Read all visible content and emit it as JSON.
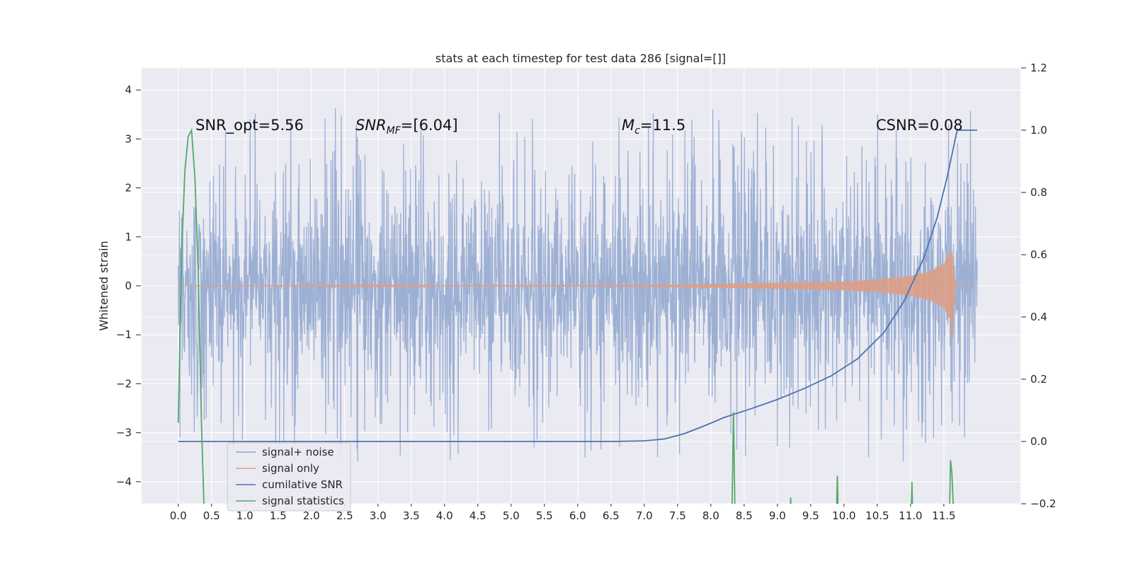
{
  "chart_data": {
    "type": "line",
    "title": "stats at each timestep for test data 286 [signal=[]]",
    "ylabel": "Whitened strain",
    "xlabel": "",
    "xlim": [
      -0.55,
      12.65
    ],
    "ylim": [
      -4.45,
      4.45
    ],
    "y2lim": [
      -0.2,
      1.2
    ],
    "x_ticks": [
      0.0,
      0.5,
      1.0,
      1.5,
      2.0,
      2.5,
      3.0,
      3.5,
      4.0,
      4.5,
      5.0,
      5.5,
      6.0,
      6.5,
      7.0,
      7.5,
      8.0,
      8.5,
      9.0,
      9.5,
      10.0,
      10.5,
      11.0,
      11.5
    ],
    "x_tick_labels": [
      "0.0",
      "0.5",
      "1.0",
      "1.5",
      "2.0",
      "2.5",
      "3.0",
      "3.5",
      "4.0",
      "4.5",
      "5.0",
      "5.5",
      "6.0",
      "6.5",
      "7.0",
      "7.5",
      "8.0",
      "8.5",
      "9.0",
      "9.5",
      "10.0",
      "10.5",
      "11.0",
      "11.5"
    ],
    "y_ticks": [
      -4,
      -3,
      -2,
      -1,
      0,
      1,
      2,
      3,
      4
    ],
    "y_tick_labels": [
      "−4",
      "−3",
      "−2",
      "−1",
      "0",
      "1",
      "2",
      "3",
      "4"
    ],
    "y2_ticks": [
      -0.2,
      0.0,
      0.2,
      0.4,
      0.6,
      0.8,
      1.0,
      1.2
    ],
    "y2_tick_labels": [
      "−0.2",
      "0.0",
      "0.2",
      "0.4",
      "0.6",
      "0.8",
      "1.0",
      "1.2"
    ],
    "grid": true,
    "legend_placement": "lower-left",
    "annotations": {
      "snr_opt": "SNR_opt=5.56",
      "snr_mf_main": "SNR",
      "snr_mf_sub": "MF",
      "snr_mf_rest": "=[6.04]",
      "mc_main": "M",
      "mc_sub": "c",
      "mc_rest": "=11.5",
      "csnr": "CSNR=0.08"
    },
    "series": [
      {
        "name": "signal+ noise",
        "color": "#8fa6cf",
        "axis": "left",
        "style": "noise",
        "x_range": [
          0.0,
          12.0
        ],
        "envelope": 1.9,
        "max": 4.1,
        "min": -4.1
      },
      {
        "name": "signal only",
        "color": "#dd9f86",
        "axis": "left",
        "style": "chirp",
        "x_range": [
          0.0,
          12.0
        ],
        "peak_x": 11.65,
        "envelope_x": [
          0.0,
          7.0,
          8.0,
          9.0,
          10.0,
          10.5,
          11.0,
          11.3,
          11.5,
          11.62,
          11.68,
          12.0
        ],
        "envelope_y": [
          0.0,
          0.02,
          0.04,
          0.06,
          0.09,
          0.13,
          0.2,
          0.3,
          0.45,
          0.75,
          0.0,
          0.0
        ]
      },
      {
        "name": "cumilative SNR",
        "color": "#4c72b0",
        "axis": "right",
        "x": [
          0.0,
          1.0,
          2.0,
          3.0,
          4.0,
          5.0,
          6.0,
          6.5,
          7.0,
          7.3,
          7.6,
          7.9,
          8.2,
          8.6,
          9.0,
          9.4,
          9.8,
          10.2,
          10.6,
          10.9,
          11.2,
          11.4,
          11.55,
          11.7,
          11.8,
          12.0
        ],
        "y": [
          0.0,
          0.0,
          0.0,
          0.0,
          0.0,
          0.0,
          0.0,
          0.0,
          0.002,
          0.008,
          0.025,
          0.05,
          0.077,
          0.105,
          0.135,
          0.17,
          0.21,
          0.265,
          0.35,
          0.45,
          0.59,
          0.72,
          0.85,
          1.0,
          1.0,
          1.0
        ]
      },
      {
        "name": "signal statistics",
        "color": "#55a868",
        "axis": "right",
        "x": [
          0.0,
          0.05,
          0.1,
          0.15,
          0.2,
          0.25,
          0.3,
          0.35,
          0.4,
          8.3,
          8.32,
          8.34,
          8.36,
          8.38,
          9.18,
          9.2,
          9.22,
          9.88,
          9.9,
          9.92,
          11.0,
          11.02,
          11.04,
          11.58,
          11.6,
          11.62,
          11.65,
          11.68
        ],
        "y": [
          0.06,
          0.6,
          0.87,
          0.98,
          1.0,
          0.85,
          0.55,
          0.05,
          -0.3,
          -0.3,
          -0.2,
          0.095,
          -0.2,
          -0.3,
          -0.3,
          -0.18,
          -0.3,
          -0.3,
          -0.11,
          -0.3,
          -0.3,
          -0.13,
          -0.3,
          -0.3,
          -0.06,
          -0.1,
          -0.25,
          -0.3
        ]
      }
    ]
  }
}
